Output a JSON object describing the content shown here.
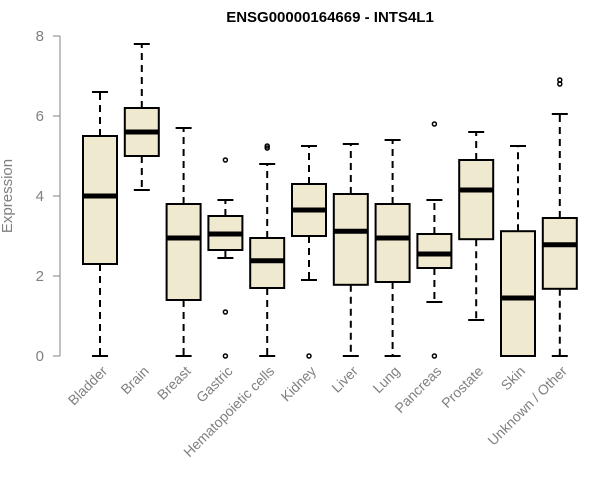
{
  "chart_data": {
    "type": "boxplot",
    "title": "ENSG00000164669 - INTS4L1",
    "xlabel": "",
    "ylabel": "Expression",
    "ylim": [
      0,
      8
    ],
    "yticks": [
      "0",
      "2",
      "4",
      "6",
      "8"
    ],
    "categories": [
      "Bladder",
      "Brain",
      "Breast",
      "Gastric",
      "Hematopoietic cells",
      "Kidney",
      "Liver",
      "Lung",
      "Pancreas",
      "Prostate",
      "Skin",
      "Unknown / Other"
    ],
    "boxes": [
      {
        "min": 0.0,
        "q1": 2.3,
        "median": 4.0,
        "q3": 5.5,
        "max": 6.6,
        "outliers": []
      },
      {
        "min": 4.15,
        "q1": 5.0,
        "median": 5.6,
        "q3": 6.2,
        "max": 7.8,
        "outliers": []
      },
      {
        "min": 0.0,
        "q1": 1.4,
        "median": 2.95,
        "q3": 3.8,
        "max": 5.7,
        "outliers": []
      },
      {
        "min": 2.45,
        "q1": 2.65,
        "median": 3.05,
        "q3": 3.5,
        "max": 3.9,
        "outliers": [
          4.9,
          1.1,
          0.0
        ]
      },
      {
        "min": 0.0,
        "q1": 1.7,
        "median": 2.38,
        "q3": 2.95,
        "max": 4.8,
        "outliers": [
          5.2,
          5.25
        ]
      },
      {
        "min": 1.9,
        "q1": 3.0,
        "median": 3.65,
        "q3": 4.3,
        "max": 5.25,
        "outliers": [
          0.0
        ]
      },
      {
        "min": 0.0,
        "q1": 1.78,
        "median": 3.12,
        "q3": 4.05,
        "max": 5.3,
        "outliers": []
      },
      {
        "min": 0.0,
        "q1": 1.85,
        "median": 2.95,
        "q3": 3.8,
        "max": 5.4,
        "outliers": []
      },
      {
        "min": 1.35,
        "q1": 2.2,
        "median": 2.55,
        "q3": 3.05,
        "max": 3.9,
        "outliers": [
          5.8,
          0.0
        ]
      },
      {
        "min": 0.9,
        "q1": 2.92,
        "median": 4.15,
        "q3": 4.9,
        "max": 5.6,
        "outliers": []
      },
      {
        "min": 0.0,
        "q1": 0.0,
        "median": 1.45,
        "q3": 3.12,
        "max": 5.25,
        "outliers": []
      },
      {
        "min": 0.0,
        "q1": 1.68,
        "median": 2.78,
        "q3": 3.45,
        "max": 6.05,
        "outliers": [
          6.8,
          6.9
        ]
      }
    ],
    "colors": {
      "box_fill": "#efe9d0",
      "box_stroke": "#000000",
      "axis": "#808080",
      "text_muted": "#808080"
    }
  }
}
